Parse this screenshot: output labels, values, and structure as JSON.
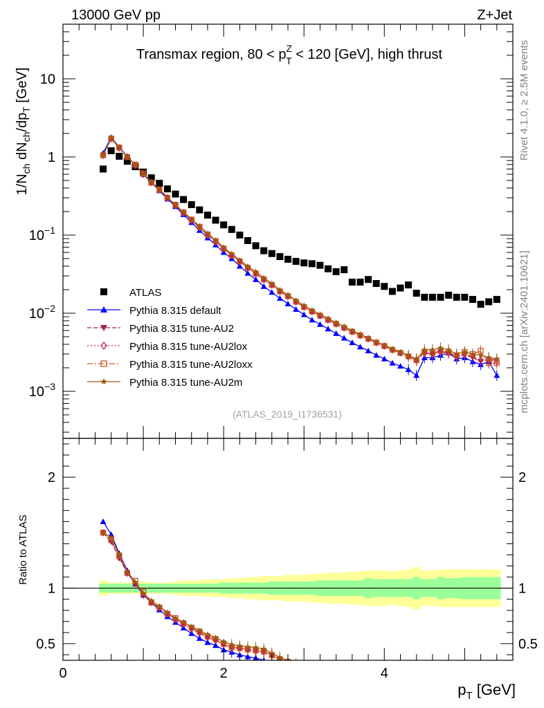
{
  "header": {
    "left": "13000 GeV pp",
    "right": "Z+Jet"
  },
  "side_labels": {
    "rivet": "Rivet 4.1.0, ≥ 2.5M events",
    "mcplots": "mcplots.cern.ch [arXiv:2401.10621]"
  },
  "chart_data": {
    "type": "scatter",
    "title": "Transmax region, 80 < p_T^Z < 120 [GeV], high thrust",
    "title_parts": {
      "pre": "Transmax region, 80 < p",
      "sup": "Z",
      "sub": "T",
      "post": " < 120 [GeV], high thrust"
    },
    "analysis_tag": "(ATLAS_2019_I1736531)",
    "xlabel": "p_T [GeV]",
    "xlabel_parts": {
      "main": "p",
      "sub": "T",
      "unit": " [GeV]"
    },
    "ylabel": "1/N_ch dN_ch/dp_T [GeV]",
    "ratio_ylabel": "Ratio to ATLAS",
    "xlim": [
      0,
      5.6
    ],
    "ylim": [
      0.00025,
      50
    ],
    "ratio_ylim": [
      0.35,
      2.35
    ],
    "yscale": "log",
    "x_ticks": [
      0,
      2,
      4
    ],
    "y_ticks": [
      {
        "value": 10,
        "base": "10",
        "exp": ""
      },
      {
        "value": 1,
        "base": "1",
        "exp": ""
      },
      {
        "value": 0.1,
        "base": "10",
        "exp": "−1"
      },
      {
        "value": 0.01,
        "base": "10",
        "exp": "−2"
      },
      {
        "value": 0.001,
        "base": "10",
        "exp": "−3"
      }
    ],
    "ratio_ticks": [
      {
        "value": 0.5,
        "label": "0.5"
      },
      {
        "value": 1,
        "label": "1"
      },
      {
        "value": 2,
        "label": "2"
      }
    ],
    "x": [
      0.5,
      0.6,
      0.7,
      0.8,
      0.9,
      1.0,
      1.1,
      1.2,
      1.3,
      1.4,
      1.5,
      1.6,
      1.7,
      1.8,
      1.9,
      2.0,
      2.1,
      2.2,
      2.3,
      2.4,
      2.5,
      2.6,
      2.7,
      2.8,
      2.9,
      3.0,
      3.1,
      3.2,
      3.3,
      3.4,
      3.5,
      3.6,
      3.7,
      3.8,
      3.9,
      4.0,
      4.1,
      4.2,
      4.3,
      4.4,
      4.5,
      4.6,
      4.7,
      4.8,
      4.9,
      5.0,
      5.1,
      5.2,
      5.3,
      5.4
    ],
    "ratio_band": {
      "inner_halfwidth": [
        0.04,
        0.04,
        0.04,
        0.04,
        0.04,
        0.04,
        0.04,
        0.04,
        0.04,
        0.04,
        0.04,
        0.04,
        0.04,
        0.04,
        0.04,
        0.05,
        0.05,
        0.05,
        0.05,
        0.05,
        0.05,
        0.06,
        0.06,
        0.06,
        0.06,
        0.06,
        0.06,
        0.07,
        0.07,
        0.07,
        0.07,
        0.07,
        0.07,
        0.09,
        0.08,
        0.08,
        0.08,
        0.08,
        0.08,
        0.1,
        0.08,
        0.08,
        0.1,
        0.09,
        0.09,
        0.1,
        0.1,
        0.1,
        0.1,
        0.1
      ],
      "outer_halfwidth": [
        0.07,
        0.05,
        0.05,
        0.05,
        0.05,
        0.06,
        0.05,
        0.05,
        0.05,
        0.06,
        0.07,
        0.07,
        0.07,
        0.08,
        0.08,
        0.08,
        0.09,
        0.09,
        0.1,
        0.1,
        0.11,
        0.11,
        0.11,
        0.12,
        0.12,
        0.12,
        0.13,
        0.13,
        0.14,
        0.14,
        0.14,
        0.15,
        0.15,
        0.16,
        0.16,
        0.16,
        0.15,
        0.16,
        0.17,
        0.19,
        0.16,
        0.16,
        0.17,
        0.17,
        0.17,
        0.17,
        0.17,
        0.17,
        0.17,
        0.17
      ]
    },
    "series": [
      {
        "name": "ATLAS",
        "color": "#000000",
        "marker": "square",
        "line": "none",
        "is_reference": true,
        "values": [
          0.7,
          1.2,
          1.02,
          0.88,
          0.75,
          0.64,
          0.54,
          0.46,
          0.39,
          0.335,
          0.285,
          0.245,
          0.21,
          0.18,
          0.155,
          0.135,
          0.118,
          0.1,
          0.085,
          0.073,
          0.063,
          0.058,
          0.053,
          0.049,
          0.046,
          0.044,
          0.043,
          0.041,
          0.037,
          0.034,
          0.036,
          0.025,
          0.025,
          0.027,
          0.024,
          0.022,
          0.019,
          0.021,
          0.023,
          0.018,
          0.016,
          0.016,
          0.016,
          0.017,
          0.016,
          0.016,
          0.015,
          0.013,
          0.014,
          0.015
        ]
      },
      {
        "name": "Pythia 8.315 default",
        "color": "#0000ff",
        "marker": "triangle-up",
        "line": "solid",
        "values": [
          1.12,
          1.78,
          1.34,
          1.02,
          0.78,
          0.6,
          0.47,
          0.37,
          0.29,
          0.232,
          0.183,
          0.145,
          0.115,
          0.092,
          0.075,
          0.06,
          0.05,
          0.04,
          0.0325,
          0.027,
          0.022,
          0.0185,
          0.0155,
          0.0132,
          0.0112,
          0.0096,
          0.0082,
          0.0072,
          0.0063,
          0.0055,
          0.0048,
          0.0042,
          0.0037,
          0.0033,
          0.0029,
          0.0026,
          0.0023,
          0.0021,
          0.0019,
          0.0016,
          0.0027,
          0.0027,
          0.0029,
          0.0031,
          0.0026,
          0.0027,
          0.0024,
          0.0022,
          0.0024,
          0.0016
        ]
      },
      {
        "name": "Pythia 8.315 tune-AU2",
        "color": "#a0204a",
        "marker": "triangle-down",
        "line": "dashed",
        "values": [
          1.05,
          1.7,
          1.3,
          1.0,
          0.78,
          0.6,
          0.47,
          0.38,
          0.3,
          0.24,
          0.192,
          0.155,
          0.125,
          0.1,
          0.082,
          0.067,
          0.055,
          0.046,
          0.038,
          0.032,
          0.027,
          0.023,
          0.019,
          0.0165,
          0.014,
          0.012,
          0.0105,
          0.0093,
          0.0082,
          0.0073,
          0.0065,
          0.0058,
          0.0052,
          0.0047,
          0.0042,
          0.0038,
          0.0034,
          0.0031,
          0.0028,
          0.0025,
          0.0031,
          0.003,
          0.0032,
          0.0031,
          0.0028,
          0.0029,
          0.0027,
          0.0024,
          0.0026,
          0.0025
        ]
      },
      {
        "name": "Pythia 8.315 tune-AU2lox",
        "color": "#c02060",
        "marker": "diamond-open",
        "line": "dotted",
        "values": [
          1.05,
          1.72,
          1.3,
          1.0,
          0.78,
          0.6,
          0.47,
          0.38,
          0.3,
          0.24,
          0.192,
          0.155,
          0.125,
          0.1,
          0.082,
          0.067,
          0.055,
          0.046,
          0.038,
          0.032,
          0.027,
          0.023,
          0.019,
          0.0165,
          0.014,
          0.012,
          0.0105,
          0.0093,
          0.0082,
          0.0073,
          0.0065,
          0.0058,
          0.0052,
          0.0047,
          0.0042,
          0.0038,
          0.0034,
          0.0031,
          0.0028,
          0.0025,
          0.0031,
          0.003,
          0.0032,
          0.0031,
          0.0028,
          0.003,
          0.0028,
          0.0025,
          0.0025,
          0.0024
        ]
      },
      {
        "name": "Pythia 8.315 tune-AU2loxx",
        "color": "#d05020",
        "marker": "square-open",
        "line": "dashdot",
        "values": [
          1.05,
          1.72,
          1.32,
          1.0,
          0.8,
          0.62,
          0.47,
          0.38,
          0.3,
          0.245,
          0.195,
          0.158,
          0.128,
          0.102,
          0.084,
          0.067,
          0.055,
          0.046,
          0.038,
          0.032,
          0.027,
          0.023,
          0.019,
          0.0165,
          0.014,
          0.012,
          0.0105,
          0.0093,
          0.0082,
          0.0073,
          0.0065,
          0.0058,
          0.0052,
          0.0047,
          0.0042,
          0.0038,
          0.0034,
          0.0031,
          0.0028,
          0.0025,
          0.0032,
          0.0031,
          0.0033,
          0.0032,
          0.0029,
          0.0032,
          0.003,
          0.0033,
          0.0023,
          0.0023
        ]
      },
      {
        "name": "Pythia 8.315 tune-AU2m",
        "color": "#a05a10",
        "marker": "star",
        "line": "solid",
        "values": [
          1.05,
          1.75,
          1.33,
          1.01,
          0.79,
          0.61,
          0.48,
          0.385,
          0.305,
          0.245,
          0.198,
          0.16,
          0.13,
          0.105,
          0.086,
          0.07,
          0.058,
          0.048,
          0.04,
          0.034,
          0.0285,
          0.024,
          0.02,
          0.0172,
          0.0147,
          0.0126,
          0.011,
          0.0097,
          0.0086,
          0.0076,
          0.0068,
          0.006,
          0.0054,
          0.0048,
          0.0043,
          0.0039,
          0.0035,
          0.0032,
          0.0029,
          0.0026,
          0.0034,
          0.0034,
          0.0036,
          0.0034,
          0.003,
          0.0032,
          0.003,
          0.0029,
          0.0027,
          0.0026
        ]
      }
    ]
  }
}
